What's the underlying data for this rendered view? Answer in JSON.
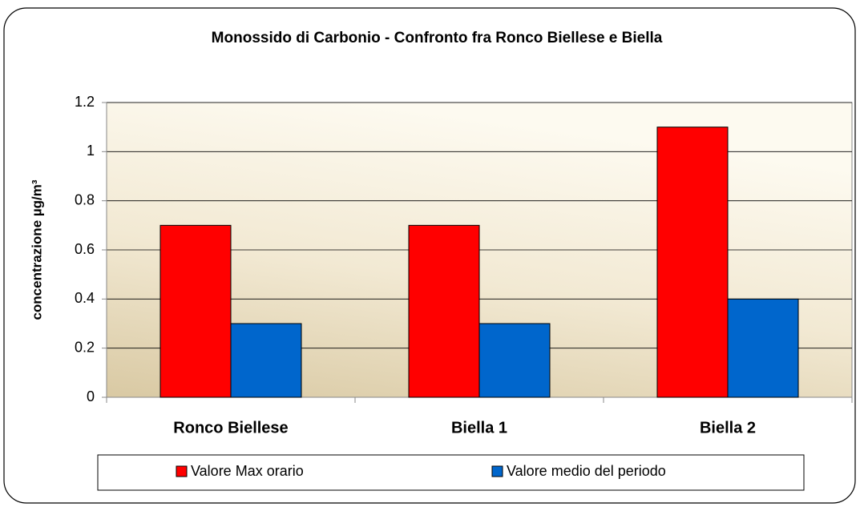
{
  "chart_data": {
    "type": "bar",
    "title": "Monossido di Carbonio - Confronto fra Ronco Biellese e Biella",
    "y_label": "concentrazione µg/m³",
    "categories": [
      "Ronco Biellese",
      "Biella 1",
      "Biella 2"
    ],
    "series": [
      {
        "name": "Valore Max orario",
        "color": "#ff0000",
        "values": [
          0.7,
          0.7,
          1.1
        ]
      },
      {
        "name": "Valore medio del periodo",
        "color": "#0066cc",
        "values": [
          0.3,
          0.3,
          0.4
        ]
      }
    ],
    "ylim": [
      0,
      1.2
    ],
    "yticks": [
      0,
      0.2,
      0.4,
      0.6,
      0.8,
      1,
      1.2
    ],
    "grid": true,
    "legend": "bottom"
  }
}
